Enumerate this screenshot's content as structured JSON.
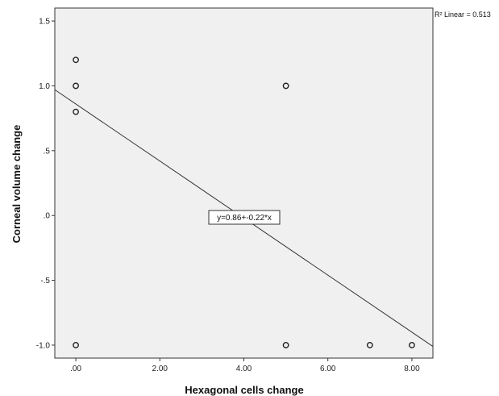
{
  "chart_data": {
    "type": "scatter",
    "title": "",
    "xlabel": "Hexagonal cells change",
    "ylabel": "Corneal volume change",
    "xlim": [
      -0.5,
      8.5
    ],
    "ylim": [
      -1.1,
      1.6
    ],
    "x_ticks": [
      0,
      2,
      4,
      6,
      8
    ],
    "x_tick_labels": [
      ".00",
      "2.00",
      "4.00",
      "6.00",
      "8.00"
    ],
    "y_ticks": [
      1.5,
      1.0,
      0.5,
      0.0,
      -0.5,
      -1.0
    ],
    "y_tick_labels": [
      "1.5",
      "1.0",
      ".5",
      ".0",
      "-.5",
      "-1.0"
    ],
    "points": [
      {
        "x": 0,
        "y": 1.2
      },
      {
        "x": 0,
        "y": 1.0
      },
      {
        "x": 0,
        "y": 0.8
      },
      {
        "x": 0,
        "y": -1.0
      },
      {
        "x": 5,
        "y": 1.0
      },
      {
        "x": 5,
        "y": -1.0
      },
      {
        "x": 7,
        "y": -1.0
      },
      {
        "x": 8,
        "y": -1.0
      }
    ],
    "fit_line": {
      "intercept": 0.86,
      "slope": -0.22
    },
    "equation_label": "y=0.86+-0.22*x",
    "r2_label": "R² Linear = 0.513",
    "grid": false,
    "colors": {
      "plot_background": "#f0f0f0",
      "marker": "#222222",
      "line": "#333333"
    }
  }
}
